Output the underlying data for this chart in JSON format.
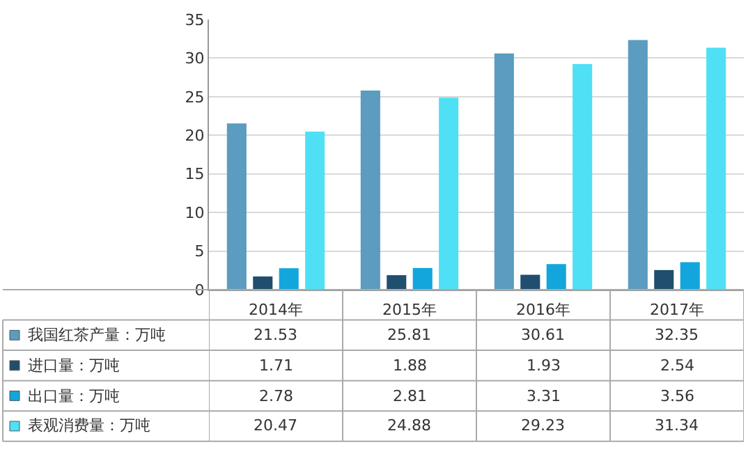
{
  "chart_data": {
    "type": "bar",
    "categories": [
      "2014年",
      "2015年",
      "2016年",
      "2017年"
    ],
    "series": [
      {
        "name": "我国红茶产量：万吨",
        "color": "#5b9cc0",
        "values": [
          21.53,
          25.81,
          30.61,
          32.35
        ]
      },
      {
        "name": "进口量：万吨",
        "color": "#1f4e6e",
        "values": [
          1.71,
          1.88,
          1.93,
          2.54
        ]
      },
      {
        "name": "出口量：万吨",
        "color": "#12a6dd",
        "values": [
          2.78,
          2.81,
          3.31,
          3.56
        ]
      },
      {
        "name": "表观消费量：万吨",
        "color": "#4fe0f5",
        "values": [
          20.47,
          24.88,
          29.23,
          31.34
        ]
      }
    ],
    "ylim": [
      0,
      35
    ],
    "yticks": [
      0,
      5,
      10,
      15,
      20,
      25,
      30,
      35
    ],
    "grid": "y",
    "legend": "bottom",
    "data_labels": true
  }
}
